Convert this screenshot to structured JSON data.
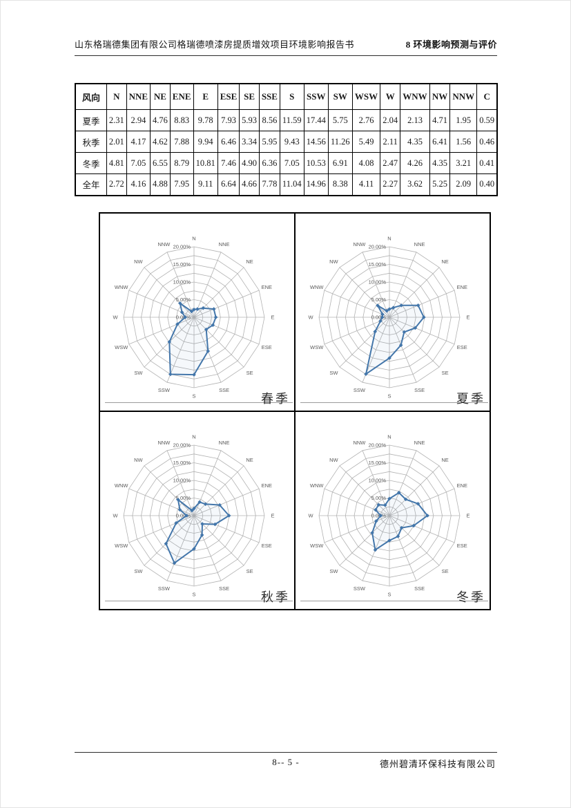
{
  "header": {
    "left": "山东格瑞德集团有限公司格瑞德喷漆房提质增效项目环境影响报告书",
    "right": "8 环境影响预测与评价"
  },
  "footer": {
    "page_number": "8-- 5 -",
    "company": "德州碧清环保科技有限公司"
  },
  "wind_table": {
    "corner_label": "风向",
    "columns": [
      "N",
      "NNE",
      "NE",
      "ENE",
      "E",
      "ESE",
      "SE",
      "SSE",
      "S",
      "SSW",
      "SW",
      "WSW",
      "W",
      "WNW",
      "NW",
      "NNW",
      "C"
    ],
    "rows": [
      {
        "label": "夏季",
        "values": [
          "2.31",
          "2.94",
          "4.76",
          "8.83",
          "9.78",
          "7.93",
          "5.93",
          "8.56",
          "11.59",
          "17.44",
          "5.75",
          "2.76",
          "2.04",
          "2.13",
          "4.71",
          "1.95",
          "0.59"
        ]
      },
      {
        "label": "秋季",
        "values": [
          "2.01",
          "4.17",
          "4.62",
          "7.88",
          "9.94",
          "6.46",
          "3.34",
          "5.95",
          "9.43",
          "14.56",
          "11.26",
          "5.49",
          "2.11",
          "4.35",
          "6.41",
          "1.56",
          "0.46"
        ]
      },
      {
        "label": "冬季",
        "values": [
          "4.81",
          "7.05",
          "6.55",
          "8.79",
          "10.81",
          "7.46",
          "4.90",
          "6.36",
          "7.05",
          "10.53",
          "6.91",
          "4.08",
          "2.47",
          "4.26",
          "4.35",
          "3.21",
          "0.41"
        ]
      },
      {
        "label": "全年",
        "values": [
          "2.72",
          "4.16",
          "4.88",
          "7.95",
          "9.11",
          "6.64",
          "4.66",
          "7.78",
          "11.04",
          "14.96",
          "8.38",
          "4.11",
          "2.27",
          "3.62",
          "5.25",
          "2.09",
          "0.40"
        ]
      }
    ]
  },
  "chart_data": [
    {
      "type": "radar",
      "title": "春季",
      "categories": [
        "N",
        "NNE",
        "NE",
        "ENE",
        "E",
        "ESE",
        "SE",
        "SSE",
        "S",
        "SSW",
        "SW",
        "WSW",
        "W",
        "WNW",
        "NW",
        "NNW"
      ],
      "values": [
        2.2,
        2.5,
        3.7,
        6.1,
        6.2,
        5.8,
        4.9,
        10.4,
        16.3,
        17.5,
        9.9,
        5.1,
        2.5,
        3.7,
        5.6,
        1.8
      ],
      "axis_ticks": [
        "0.00%",
        "5.00%",
        "10.00%",
        "15.00%",
        "20.00%"
      ],
      "r_max": 20,
      "ring_step": 2.5,
      "legend_position": "none",
      "grid": true
    },
    {
      "type": "radar",
      "title": "夏季",
      "categories": [
        "N",
        "NNE",
        "NE",
        "ENE",
        "E",
        "ESE",
        "SE",
        "SSE",
        "S",
        "SSW",
        "SW",
        "WSW",
        "W",
        "WNW",
        "NW",
        "NNW"
      ],
      "values": [
        2.31,
        2.94,
        4.76,
        8.83,
        9.78,
        7.93,
        5.93,
        8.56,
        11.59,
        17.44,
        5.75,
        2.76,
        2.04,
        2.13,
        4.71,
        1.95
      ],
      "axis_ticks": [
        "0.00%",
        "5.00%",
        "10.00%",
        "15.00%",
        "20.00%"
      ],
      "r_max": 20,
      "ring_step": 2.5,
      "legend_position": "none",
      "grid": true
    },
    {
      "type": "radar",
      "title": "秋季",
      "categories": [
        "N",
        "NNE",
        "NE",
        "ENE",
        "E",
        "ESE",
        "SE",
        "SSE",
        "S",
        "SSW",
        "SW",
        "WSW",
        "W",
        "WNW",
        "NW",
        "NNW"
      ],
      "values": [
        2.01,
        4.17,
        4.62,
        7.88,
        9.94,
        6.46,
        3.34,
        5.95,
        9.43,
        14.56,
        11.26,
        5.49,
        2.11,
        4.35,
        6.41,
        1.56
      ],
      "axis_ticks": [
        "0.00%",
        "5.00%",
        "10.00%",
        "15.00%",
        "20.00%"
      ],
      "r_max": 20,
      "ring_step": 2.5,
      "legend_position": "none",
      "grid": true
    },
    {
      "type": "radar",
      "title": "冬季",
      "categories": [
        "N",
        "NNE",
        "NE",
        "ENE",
        "E",
        "ESE",
        "SE",
        "SSE",
        "S",
        "SSW",
        "SW",
        "WSW",
        "W",
        "WNW",
        "NW",
        "NNW"
      ],
      "values": [
        4.81,
        7.05,
        6.55,
        8.79,
        10.81,
        7.46,
        4.9,
        6.36,
        7.05,
        10.53,
        6.91,
        4.08,
        2.47,
        4.26,
        4.35,
        3.21
      ],
      "axis_ticks": [
        "0.00%",
        "5.00%",
        "10.00%",
        "15.00%",
        "20.00%"
      ],
      "r_max": 20,
      "ring_step": 2.5,
      "legend_position": "none",
      "grid": true
    }
  ],
  "colors": {
    "series_line": "#4376aa",
    "marker": "#4376aa",
    "grid_line": "#b2b2b2",
    "axis_text": "#595959",
    "table_border": "#000000",
    "season_label_text": "#2d2d2d"
  }
}
